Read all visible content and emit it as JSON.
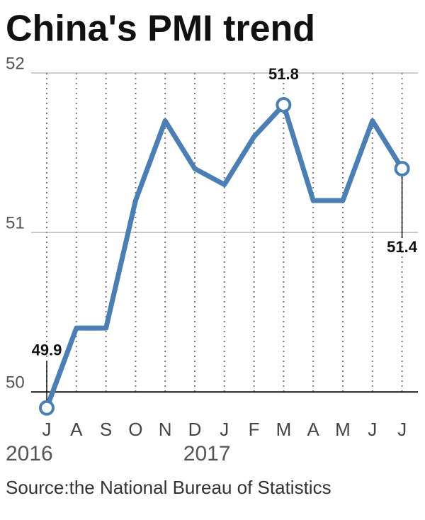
{
  "chart_data": {
    "type": "line",
    "title": "China's PMI trend",
    "categories": [
      "J",
      "A",
      "S",
      "O",
      "N",
      "D",
      "J",
      "F",
      "M",
      "A",
      "M",
      "J",
      "J"
    ],
    "years": [
      "2016",
      null,
      null,
      null,
      null,
      null,
      "2017",
      null,
      null,
      null,
      null,
      null,
      null
    ],
    "values": [
      49.9,
      50.4,
      50.4,
      51.2,
      51.7,
      51.4,
      51.3,
      51.6,
      51.8,
      51.2,
      51.2,
      51.7,
      51.4
    ],
    "value_labels": [
      "49.9",
      null,
      null,
      null,
      null,
      null,
      null,
      null,
      "51.8",
      null,
      null,
      null,
      "51.4"
    ],
    "color": "#4a7fb5",
    "ylim": [
      49.85,
      52
    ],
    "yticks": [
      50,
      51,
      52
    ],
    "grid": true,
    "source": "Source:the National Bureau of Statistics"
  }
}
